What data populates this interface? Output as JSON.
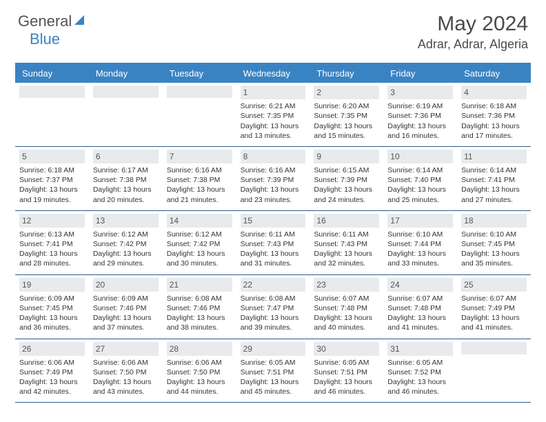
{
  "logo": {
    "general": "General",
    "blue": "Blue"
  },
  "title": "May 2024",
  "location": "Adrar, Adrar, Algeria",
  "day_names": [
    "Sunday",
    "Monday",
    "Tuesday",
    "Wednesday",
    "Thursday",
    "Friday",
    "Saturday"
  ],
  "colors": {
    "header_bg": "#3a83c3",
    "header_text": "#ffffff",
    "daynum_bg": "#e8eaed",
    "row_border": "#2b5a8a",
    "logo_gray": "#535559",
    "logo_blue": "#3a83c3"
  },
  "weeks": [
    [
      {
        "n": "",
        "empty": true
      },
      {
        "n": "",
        "empty": true
      },
      {
        "n": "",
        "empty": true
      },
      {
        "n": "1",
        "sr": "6:21 AM",
        "ss": "7:35 PM",
        "dl": "13 hours and 13 minutes."
      },
      {
        "n": "2",
        "sr": "6:20 AM",
        "ss": "7:35 PM",
        "dl": "13 hours and 15 minutes."
      },
      {
        "n": "3",
        "sr": "6:19 AM",
        "ss": "7:36 PM",
        "dl": "13 hours and 16 minutes."
      },
      {
        "n": "4",
        "sr": "6:18 AM",
        "ss": "7:36 PM",
        "dl": "13 hours and 17 minutes."
      }
    ],
    [
      {
        "n": "5",
        "sr": "6:18 AM",
        "ss": "7:37 PM",
        "dl": "13 hours and 19 minutes."
      },
      {
        "n": "6",
        "sr": "6:17 AM",
        "ss": "7:38 PM",
        "dl": "13 hours and 20 minutes."
      },
      {
        "n": "7",
        "sr": "6:16 AM",
        "ss": "7:38 PM",
        "dl": "13 hours and 21 minutes."
      },
      {
        "n": "8",
        "sr": "6:16 AM",
        "ss": "7:39 PM",
        "dl": "13 hours and 23 minutes."
      },
      {
        "n": "9",
        "sr": "6:15 AM",
        "ss": "7:39 PM",
        "dl": "13 hours and 24 minutes."
      },
      {
        "n": "10",
        "sr": "6:14 AM",
        "ss": "7:40 PM",
        "dl": "13 hours and 25 minutes."
      },
      {
        "n": "11",
        "sr": "6:14 AM",
        "ss": "7:41 PM",
        "dl": "13 hours and 27 minutes."
      }
    ],
    [
      {
        "n": "12",
        "sr": "6:13 AM",
        "ss": "7:41 PM",
        "dl": "13 hours and 28 minutes."
      },
      {
        "n": "13",
        "sr": "6:12 AM",
        "ss": "7:42 PM",
        "dl": "13 hours and 29 minutes."
      },
      {
        "n": "14",
        "sr": "6:12 AM",
        "ss": "7:42 PM",
        "dl": "13 hours and 30 minutes."
      },
      {
        "n": "15",
        "sr": "6:11 AM",
        "ss": "7:43 PM",
        "dl": "13 hours and 31 minutes."
      },
      {
        "n": "16",
        "sr": "6:11 AM",
        "ss": "7:43 PM",
        "dl": "13 hours and 32 minutes."
      },
      {
        "n": "17",
        "sr": "6:10 AM",
        "ss": "7:44 PM",
        "dl": "13 hours and 33 minutes."
      },
      {
        "n": "18",
        "sr": "6:10 AM",
        "ss": "7:45 PM",
        "dl": "13 hours and 35 minutes."
      }
    ],
    [
      {
        "n": "19",
        "sr": "6:09 AM",
        "ss": "7:45 PM",
        "dl": "13 hours and 36 minutes."
      },
      {
        "n": "20",
        "sr": "6:09 AM",
        "ss": "7:46 PM",
        "dl": "13 hours and 37 minutes."
      },
      {
        "n": "21",
        "sr": "6:08 AM",
        "ss": "7:46 PM",
        "dl": "13 hours and 38 minutes."
      },
      {
        "n": "22",
        "sr": "6:08 AM",
        "ss": "7:47 PM",
        "dl": "13 hours and 39 minutes."
      },
      {
        "n": "23",
        "sr": "6:07 AM",
        "ss": "7:48 PM",
        "dl": "13 hours and 40 minutes."
      },
      {
        "n": "24",
        "sr": "6:07 AM",
        "ss": "7:48 PM",
        "dl": "13 hours and 41 minutes."
      },
      {
        "n": "25",
        "sr": "6:07 AM",
        "ss": "7:49 PM",
        "dl": "13 hours and 41 minutes."
      }
    ],
    [
      {
        "n": "26",
        "sr": "6:06 AM",
        "ss": "7:49 PM",
        "dl": "13 hours and 42 minutes."
      },
      {
        "n": "27",
        "sr": "6:06 AM",
        "ss": "7:50 PM",
        "dl": "13 hours and 43 minutes."
      },
      {
        "n": "28",
        "sr": "6:06 AM",
        "ss": "7:50 PM",
        "dl": "13 hours and 44 minutes."
      },
      {
        "n": "29",
        "sr": "6:05 AM",
        "ss": "7:51 PM",
        "dl": "13 hours and 45 minutes."
      },
      {
        "n": "30",
        "sr": "6:05 AM",
        "ss": "7:51 PM",
        "dl": "13 hours and 46 minutes."
      },
      {
        "n": "31",
        "sr": "6:05 AM",
        "ss": "7:52 PM",
        "dl": "13 hours and 46 minutes."
      },
      {
        "n": "",
        "empty": true
      }
    ]
  ],
  "labels": {
    "sunrise": "Sunrise:",
    "sunset": "Sunset:",
    "daylight": "Daylight:"
  }
}
